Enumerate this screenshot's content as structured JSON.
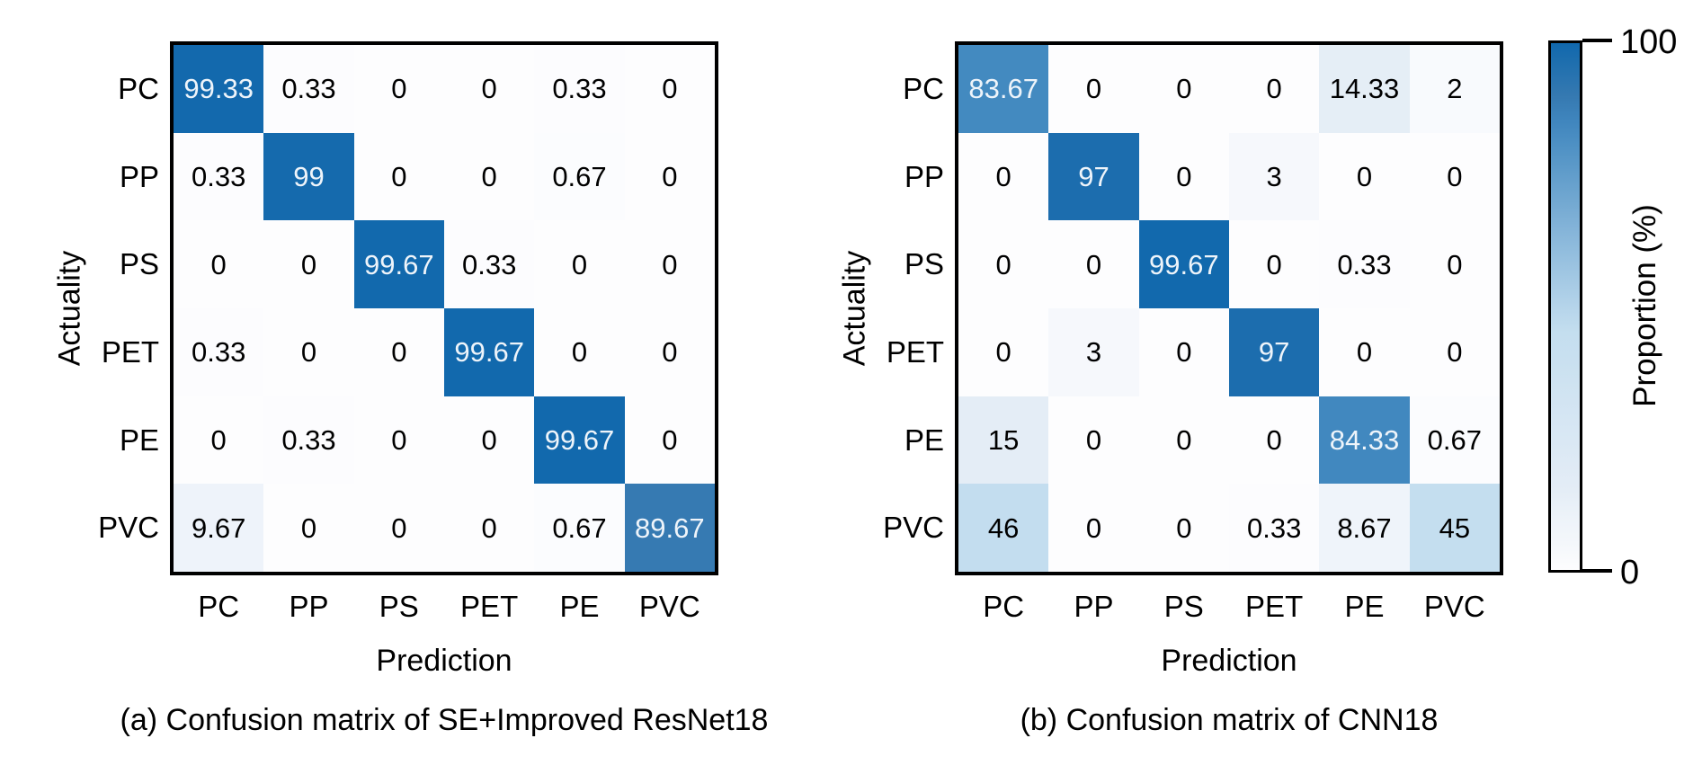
{
  "figure": {
    "background": "#ffffff",
    "text_color": "#000000",
    "diagonal_text_color": "#eef4fa",
    "white_text_threshold": 60
  },
  "palette": {
    "name": "Blues",
    "stops": [
      [
        0,
        "#fdfdfe"
      ],
      [
        3,
        "#f6f8fc"
      ],
      [
        9,
        "#eff4fa"
      ],
      [
        15,
        "#e4edf6"
      ],
      [
        46,
        "#c3ddef"
      ],
      [
        84,
        "#4289c0"
      ],
      [
        90,
        "#3579b1"
      ],
      [
        100,
        "#1168ad"
      ]
    ]
  },
  "colorbar": {
    "label": "Proportion (%)",
    "tick_top": "100",
    "tick_bottom": "0",
    "min": 0,
    "max": 100
  },
  "chart_data": [
    {
      "type": "heatmap",
      "caption": "(a) Confusion matrix of SE+Improved ResNet18",
      "xlabel": "Prediction",
      "ylabel": "Actuality",
      "x_categories": [
        "PC",
        "PP",
        "PS",
        "PET",
        "PE",
        "PVC"
      ],
      "y_categories": [
        "PC",
        "PP",
        "PS",
        "PET",
        "PE",
        "PVC"
      ],
      "value_range": [
        0,
        100
      ],
      "rows": [
        [
          99.33,
          0.33,
          0,
          0,
          0.33,
          0
        ],
        [
          0.33,
          99,
          0,
          0,
          0.67,
          0
        ],
        [
          0,
          0,
          99.67,
          0.33,
          0,
          0
        ],
        [
          0.33,
          0,
          0,
          99.67,
          0,
          0
        ],
        [
          0,
          0.33,
          0,
          0,
          99.67,
          0
        ],
        [
          9.67,
          0,
          0,
          0,
          0.67,
          89.67
        ]
      ]
    },
    {
      "type": "heatmap",
      "caption": "(b) Confusion matrix of CNN18",
      "xlabel": "Prediction",
      "ylabel": "Actuality",
      "x_categories": [
        "PC",
        "PP",
        "PS",
        "PET",
        "PE",
        "PVC"
      ],
      "y_categories": [
        "PC",
        "PP",
        "PS",
        "PET",
        "PE",
        "PVC"
      ],
      "value_range": [
        0,
        100
      ],
      "rows": [
        [
          83.67,
          0,
          0,
          0,
          14.33,
          2
        ],
        [
          0,
          97,
          0,
          3,
          0,
          0
        ],
        [
          0,
          0,
          99.67,
          0,
          0.33,
          0
        ],
        [
          0,
          3,
          0,
          97,
          0,
          0
        ],
        [
          15,
          0,
          0,
          0,
          84.33,
          0.67
        ],
        [
          46,
          0,
          0,
          0.33,
          8.67,
          45
        ]
      ]
    }
  ]
}
